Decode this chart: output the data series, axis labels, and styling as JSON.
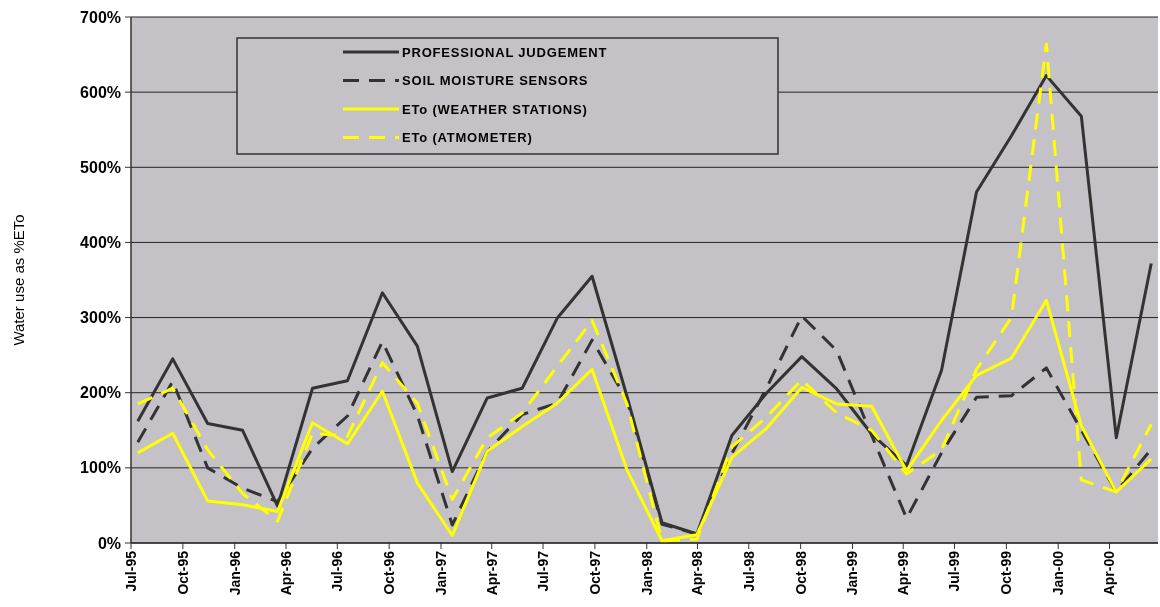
{
  "chart_data": {
    "type": "line",
    "ylabel": "Water use as %ETo",
    "legend": "top",
    "grid": "y",
    "marker": "none",
    "x": [
      "1995-07-13",
      "1995-09-13",
      "1995-11-14",
      "1996-01-15",
      "1996-03-17",
      "1996-05-18",
      "1996-07-19",
      "1996-09-19",
      "1996-11-20",
      "1997-01-21",
      "1997-03-24",
      "1997-05-25",
      "1997-07-26",
      "1997-09-26",
      "1997-11-27",
      "1998-01-28",
      "1998-03-31",
      "1998-06-01",
      "1998-08-02",
      "1998-10-03",
      "1998-12-04",
      "1999-02-04",
      "1999-04-07",
      "1999-06-08",
      "1999-08-09",
      "1999-10-10",
      "1999-12-11",
      "2000-02-11",
      "2000-04-13",
      "2000-06-14"
    ],
    "xlim": [
      "1995-07-01",
      "2000-06-26"
    ],
    "xticks": [
      {
        "value": "1995-07",
        "label": "Jul-95"
      },
      {
        "value": "1995-10",
        "label": "Oct-95"
      },
      {
        "value": "1996-01",
        "label": "Jan-96"
      },
      {
        "value": "1996-04",
        "label": "Apr-96"
      },
      {
        "value": "1996-07",
        "label": "Jul-96"
      },
      {
        "value": "1996-10",
        "label": "Oct-96"
      },
      {
        "value": "1997-01",
        "label": "Jan-97"
      },
      {
        "value": "1997-04",
        "label": "Apr-97"
      },
      {
        "value": "1997-07",
        "label": "Jul-97"
      },
      {
        "value": "1997-10",
        "label": "Oct-97"
      },
      {
        "value": "1998-01",
        "label": "Jan-98"
      },
      {
        "value": "1998-04",
        "label": "Apr-98"
      },
      {
        "value": "1998-07",
        "label": "Jul-98"
      },
      {
        "value": "1998-10",
        "label": "Oct-98"
      },
      {
        "value": "1999-01",
        "label": "Jan-99"
      },
      {
        "value": "1999-04",
        "label": "Apr-99"
      },
      {
        "value": "1999-07",
        "label": "Jul-99"
      },
      {
        "value": "1999-10",
        "label": "Oct-99"
      },
      {
        "value": "2000-01",
        "label": "Jan-00"
      },
      {
        "value": "2000-04",
        "label": "Apr-00"
      }
    ],
    "ylim": [
      0,
      700
    ],
    "yticks": [
      {
        "value": 0,
        "label": "0%"
      },
      {
        "value": 100,
        "label": "100%"
      },
      {
        "value": 200,
        "label": "200%"
      },
      {
        "value": 300,
        "label": "300%"
      },
      {
        "value": 400,
        "label": "400%"
      },
      {
        "value": 500,
        "label": "500%"
      },
      {
        "value": 600,
        "label": "600%"
      },
      {
        "value": 700,
        "label": "700%"
      }
    ],
    "series": [
      {
        "name": "PROFESSIONAL JUDGEMENT",
        "color": "#333333",
        "line_style": "solid",
        "values": [
          162,
          245,
          159,
          150,
          49,
          206,
          216,
          333,
          262,
          95,
          193,
          206,
          299,
          355,
          195,
          27,
          12,
          143,
          200,
          248,
          205,
          145,
          103,
          230,
          467,
          542,
          622,
          568,
          140,
          372
        ]
      },
      {
        "name": "SOIL MOISTURE SENSORS",
        "color": "#333333",
        "line_style": "dashed",
        "values": [
          134,
          215,
          100,
          73,
          55,
          126,
          169,
          268,
          170,
          24,
          122,
          171,
          186,
          270,
          190,
          25,
          12,
          119,
          207,
          302,
          256,
          143,
          33,
          120,
          194,
          196,
          233,
          150,
          68,
          125
        ]
      },
      {
        "name": "ETo (WEATHER STATIONS)",
        "color": "#ffff00",
        "line_style": "solid",
        "values": [
          120,
          146,
          56,
          51,
          42,
          160,
          132,
          202,
          80,
          10,
          122,
          155,
          186,
          231,
          97,
          3,
          11,
          114,
          153,
          207,
          185,
          182,
          96,
          163,
          223,
          246,
          323,
          156,
          68,
          112
        ]
      },
      {
        "name": "ETo (ATMOMETER)",
        "color": "#ffff00",
        "line_style": "dashed",
        "values": [
          185,
          206,
          124,
          66,
          29,
          146,
          142,
          240,
          186,
          58,
          140,
          173,
          235,
          296,
          185,
          3,
          5,
          128,
          168,
          217,
          173,
          150,
          92,
          124,
          231,
          300,
          664,
          84,
          68,
          158
        ]
      }
    ]
  }
}
